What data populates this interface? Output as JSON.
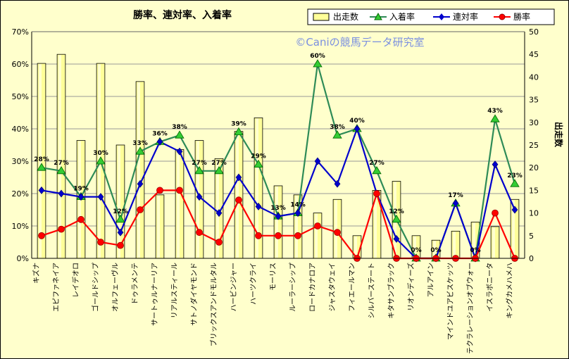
{
  "chart_data": {
    "type": "bar+line",
    "title": "勝率、連対率、入着率",
    "watermark": "©Caniの競馬データ研究室",
    "y_left": {
      "label": "",
      "ylim": [
        0,
        70
      ],
      "ticks": [
        "0%",
        "10%",
        "20%",
        "30%",
        "40%",
        "50%",
        "60%",
        "70%"
      ]
    },
    "y_right": {
      "label": "出走数",
      "ylim": [
        0,
        50
      ],
      "ticks": [
        "0",
        "5",
        "10",
        "15",
        "20",
        "25",
        "30",
        "35",
        "40",
        "45",
        "50"
      ]
    },
    "grid": true,
    "legend_position": "top-right",
    "categories": [
      "キズナ",
      "エピファネイア",
      "レイデオロ",
      "ゴールドシップ",
      "オルフェーヴル",
      "ドゥラメンテ",
      "サートゥルナーリア",
      "リアルスティール",
      "サトノダイヤモンド",
      "ブリックスアンドモルタル",
      "ハービンジャー",
      "ハーツクライ",
      "モーリス",
      "ルーラーシップ",
      "ロードカナロア",
      "ジャスタウェイ",
      "フィエールマン",
      "シルバーステート",
      "キタサンブラック",
      "リオンディーズ",
      "アルアイン",
      "マインドユアビスケッツ",
      "テクラレーションオブウォー",
      "イスラボニータ",
      "キングカメハメハ"
    ],
    "series": [
      {
        "name": "出走数",
        "axis": "right",
        "kind": "bar",
        "color": "#ffff99",
        "values": [
          43,
          45,
          26,
          43,
          25,
          39,
          14,
          24,
          26,
          22,
          28,
          31,
          16,
          14,
          10,
          13,
          5,
          15,
          17,
          5,
          4,
          6,
          8,
          7,
          13
        ]
      },
      {
        "name": "入着率",
        "axis": "left",
        "kind": "line",
        "color": "#2e8b57",
        "marker": "triangle",
        "marker_color": "#33cc33",
        "values": [
          28,
          27,
          19,
          30,
          12,
          33,
          36,
          38,
          27,
          27,
          39,
          29,
          13,
          14,
          60,
          38,
          40,
          27,
          12,
          0,
          0,
          17,
          0,
          43,
          23
        ],
        "labels": [
          "28%",
          "27%",
          "19%",
          "30%",
          "12%",
          "33%",
          "36%",
          "38%",
          "27%",
          "27%",
          "39%",
          "29%",
          "13%",
          "14%",
          "60%",
          "38%",
          "40%",
          "27%",
          "12%",
          "0%",
          "0%",
          "17%",
          "0%",
          "43%",
          "23%"
        ]
      },
      {
        "name": "連対率",
        "axis": "left",
        "kind": "line",
        "color": "#0000cc",
        "marker": "diamond",
        "marker_color": "#0000cc",
        "values": [
          21,
          20,
          19,
          19,
          8,
          23,
          36,
          33,
          19,
          14,
          25,
          16,
          13,
          14,
          30,
          23,
          40,
          20,
          6,
          0,
          0,
          17,
          0,
          29,
          15
        ]
      },
      {
        "name": "勝率",
        "axis": "left",
        "kind": "line",
        "color": "#ff0000",
        "marker": "circle",
        "marker_color": "#ff0000",
        "values": [
          7,
          9,
          12,
          5,
          4,
          15,
          21,
          21,
          8,
          5,
          18,
          7,
          7,
          7,
          10,
          8,
          0,
          20,
          0,
          0,
          0,
          0,
          0,
          14,
          0
        ]
      }
    ]
  }
}
